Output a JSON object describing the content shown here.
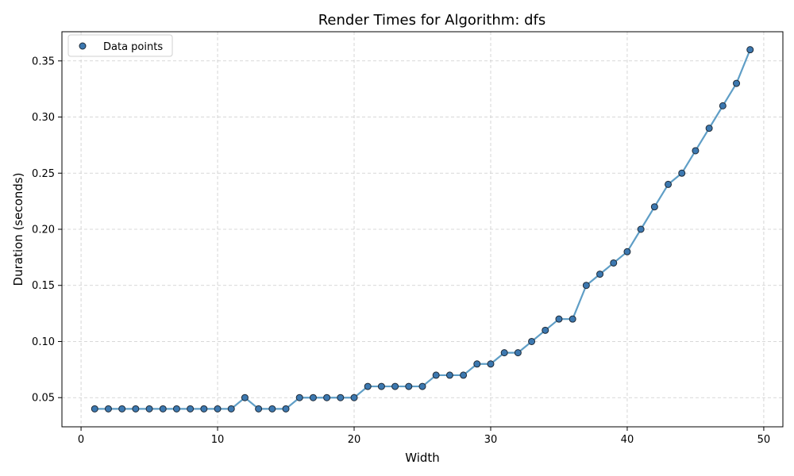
{
  "chart_data": {
    "type": "line",
    "title": "Render Times for Algorithm: dfs",
    "xlabel": "Width",
    "ylabel": "Duration (seconds)",
    "xlim": [
      -1.4,
      51.4
    ],
    "ylim": [
      0.024,
      0.376
    ],
    "xticks": [
      0,
      10,
      20,
      30,
      40,
      50
    ],
    "yticks": [
      0.05,
      0.1,
      0.15,
      0.2,
      0.25,
      0.3,
      0.35
    ],
    "ytick_labels": [
      "0.05",
      "0.10",
      "0.15",
      "0.20",
      "0.25",
      "0.30",
      "0.35"
    ],
    "grid": true,
    "legend": {
      "placement": "top-left",
      "entries": [
        "Data points"
      ]
    },
    "colors": {
      "line": "#5f9ec6",
      "marker_fill": "#3c78b0",
      "marker_edge": "#1f2a36",
      "grid": "#cccccc"
    },
    "series": [
      {
        "name": "Data points",
        "x": [
          1,
          2,
          3,
          4,
          5,
          6,
          7,
          8,
          9,
          10,
          11,
          12,
          13,
          14,
          15,
          16,
          17,
          18,
          19,
          20,
          21,
          22,
          23,
          24,
          25,
          26,
          27,
          28,
          29,
          30,
          31,
          32,
          33,
          34,
          35,
          36,
          37,
          38,
          39,
          40,
          41,
          42,
          43,
          44,
          45,
          46,
          47,
          48,
          49
        ],
        "y": [
          0.04,
          0.04,
          0.04,
          0.04,
          0.04,
          0.04,
          0.04,
          0.04,
          0.04,
          0.04,
          0.04,
          0.05,
          0.04,
          0.04,
          0.04,
          0.05,
          0.05,
          0.05,
          0.05,
          0.05,
          0.06,
          0.06,
          0.06,
          0.06,
          0.06,
          0.07,
          0.07,
          0.07,
          0.08,
          0.08,
          0.09,
          0.09,
          0.1,
          0.11,
          0.12,
          0.12,
          0.15,
          0.16,
          0.17,
          0.18,
          0.2,
          0.22,
          0.24,
          0.25,
          0.27,
          0.29,
          0.31,
          0.33,
          0.36
        ]
      }
    ]
  }
}
